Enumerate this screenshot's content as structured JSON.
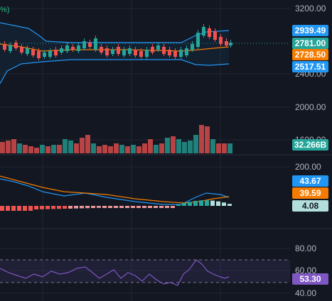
{
  "header": {
    "corner_text": "%)"
  },
  "colors": {
    "background": "#131722",
    "grid": "#1f2430",
    "up": "#26a69a",
    "down": "#ef5350",
    "band": "#2196f3",
    "ma_orange": "#f57c00",
    "rsi": "#7e57c2",
    "histogram_neg": "#ef9a9a",
    "histogram_pos": "#b2dfdb"
  },
  "price_axis": {
    "labels": [
      "3200.00",
      "2400.00",
      "2000.00",
      "1600.00"
    ],
    "badges": [
      {
        "name": "upper-band-badge",
        "value": "2939.49",
        "color": "#2196f3"
      },
      {
        "name": "last-price-badge",
        "value": "2781.00",
        "color": "#26a69a"
      },
      {
        "name": "ma-badge",
        "value": "2728.50",
        "color": "#f57c00"
      },
      {
        "name": "lower-band-badge",
        "value": "2517.51",
        "color": "#2196f3"
      },
      {
        "name": "volume-badge",
        "value": "32.266B",
        "color": "#26a69a"
      }
    ]
  },
  "macd_axis": {
    "labels": [
      "200.00"
    ],
    "badges": [
      {
        "name": "macd-line-badge",
        "value": "43.67",
        "color": "#2196f3"
      },
      {
        "name": "signal-line-badge",
        "value": "39.59",
        "color": "#f57c00"
      },
      {
        "name": "histogram-badge",
        "value": "4.08",
        "color": "#b2dfdb"
      }
    ]
  },
  "rsi_axis": {
    "labels": [
      "80.00",
      "60.00",
      "40.00"
    ],
    "badges": [
      {
        "name": "rsi-badge",
        "value": "53.30",
        "color": "#7e57c2"
      }
    ]
  }
}
